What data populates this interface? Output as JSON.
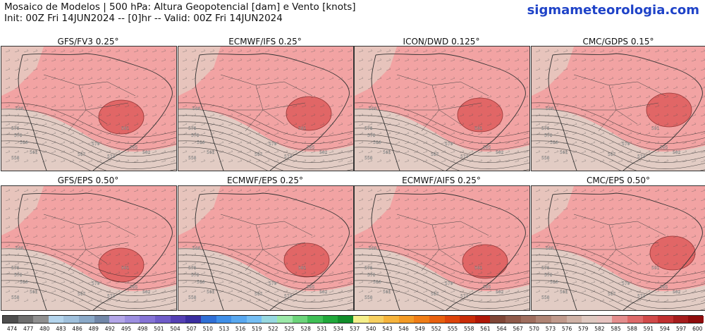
{
  "header": {
    "title_line1": "Mosaico de Modelos | 500 hPa: Altura Geopotencial [dam] e Vento [knots]",
    "title_line2": "Init: 00Z Fri 14JUN2024 -- [0]hr -- Valid: 00Z Fri 14JUN2024",
    "site": "sigmameteorologia.com"
  },
  "panels": [
    {
      "title": "GFS/FV3 0.25°",
      "labels": [
        "588",
        "591",
        "585",
        "582",
        "576",
        "570",
        "564",
        "561",
        "558",
        "579",
        "573",
        "567"
      ]
    },
    {
      "title": "ECMWF/IFS 0.25°",
      "labels": [
        "588",
        "591",
        "585",
        "582",
        "576",
        "570",
        "564",
        "561",
        "558",
        "579",
        "573",
        "567"
      ]
    },
    {
      "title": "ICON/DWD 0.125°",
      "labels": [
        "588",
        "591",
        "585",
        "582",
        "576",
        "570",
        "564",
        "561",
        "558",
        "579",
        "573",
        "567"
      ]
    },
    {
      "title": "CMC/GDPS 0.15°",
      "labels": [
        "588",
        "591",
        "585",
        "582",
        "576",
        "570",
        "564",
        "561",
        "558",
        "579",
        "573",
        "567"
      ]
    },
    {
      "title": "GFS/EPS 0.50°",
      "labels": [
        "588",
        "591",
        "585",
        "582",
        "576",
        "570",
        "564",
        "561",
        "558",
        "579",
        "573",
        "567"
      ]
    },
    {
      "title": "ECMWF/EPS 0.25°",
      "labels": [
        "588",
        "591",
        "585",
        "582",
        "576",
        "570",
        "564",
        "561",
        "558",
        "579",
        "573",
        "567"
      ]
    },
    {
      "title": "ECMWF/AIFS 0.25°",
      "labels": [
        "588",
        "591",
        "585",
        "582",
        "576",
        "570",
        "564",
        "561",
        "558",
        "579",
        "573",
        "567"
      ]
    },
    {
      "title": "CMC/EPS 0.50°",
      "labels": [
        "588",
        "591",
        "585",
        "582",
        "576",
        "570",
        "564",
        "561",
        "558",
        "579",
        "573",
        "567"
      ]
    }
  ],
  "colorbar": {
    "ticks": [
      "474",
      "477",
      "480",
      "483",
      "486",
      "489",
      "492",
      "495",
      "498",
      "501",
      "504",
      "507",
      "510",
      "513",
      "516",
      "519",
      "522",
      "525",
      "528",
      "531",
      "534",
      "537",
      "540",
      "543",
      "546",
      "549",
      "552",
      "555",
      "558",
      "561",
      "564",
      "567",
      "570",
      "573",
      "576",
      "579",
      "582",
      "585",
      "588",
      "591",
      "594",
      "597",
      "600"
    ],
    "colors": [
      "#4d4d4d",
      "#6e6e6e",
      "#8f8f8f",
      "#b3d4ec",
      "#9fc0dc",
      "#8aa9c8",
      "#7187a8",
      "#b3a6e8",
      "#9c8ee0",
      "#8573d6",
      "#6f5cc9",
      "#5440b5",
      "#3a2ea0",
      "#2f6fd6",
      "#3f8fe8",
      "#58a8f0",
      "#74bef4",
      "#96d8e0",
      "#9be8a8",
      "#6cd47a",
      "#3fbf55",
      "#20a83a",
      "#118d2a",
      "#f4ef8a",
      "#f7d060",
      "#f6b43c",
      "#f39a24",
      "#ef7d16",
      "#e8600e",
      "#dd440a",
      "#c92c08",
      "#b01808",
      "#7f4636",
      "#8f5a4a",
      "#9f6e5e",
      "#af8474",
      "#c09a8c",
      "#cfb2a6",
      "#dec8c0",
      "#e6c3c0",
      "#e48d8d",
      "#de6a6a",
      "#d14a4a",
      "#c13030",
      "#a51c1c",
      "#8e0c0c"
    ]
  }
}
